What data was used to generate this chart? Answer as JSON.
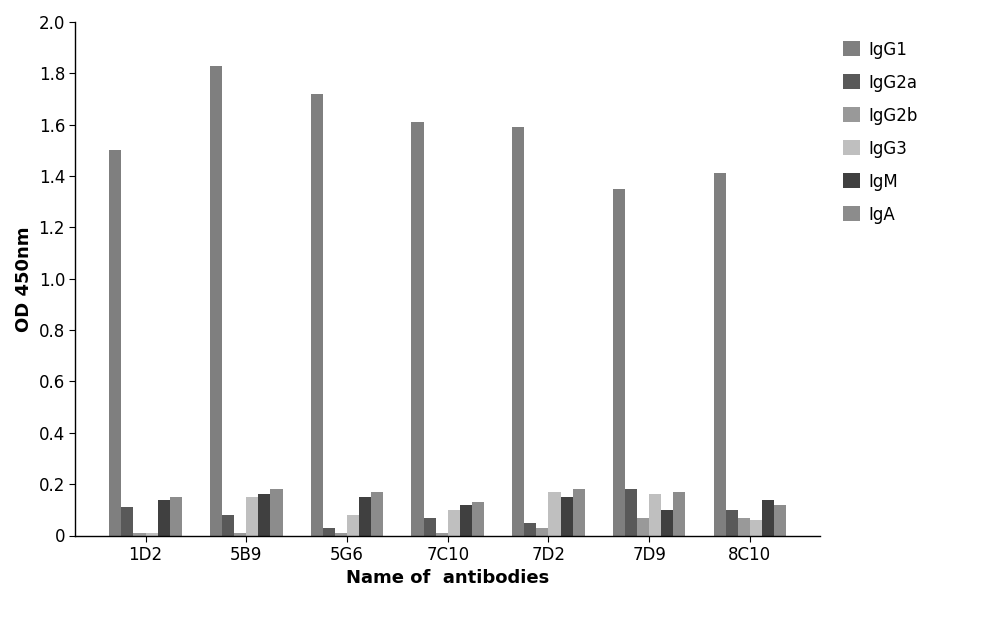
{
  "categories": [
    "1D2",
    "5B9",
    "5G6",
    "7C10",
    "7D2",
    "7D9",
    "8C10"
  ],
  "series": {
    "IgG1": [
      1.5,
      1.83,
      1.72,
      1.61,
      1.59,
      1.35,
      1.41
    ],
    "IgG2a": [
      0.11,
      0.08,
      0.03,
      0.07,
      0.05,
      0.18,
      0.1
    ],
    "IgG2b": [
      0.01,
      0.01,
      0.01,
      0.01,
      0.03,
      0.07,
      0.07
    ],
    "IgG3": [
      0.01,
      0.15,
      0.08,
      0.1,
      0.17,
      0.16,
      0.06
    ],
    "IgM": [
      0.14,
      0.16,
      0.15,
      0.12,
      0.15,
      0.1,
      0.14
    ],
    "IgA": [
      0.15,
      0.18,
      0.17,
      0.13,
      0.18,
      0.17,
      0.12
    ]
  },
  "colors": {
    "IgG1": "#7f7f7f",
    "IgG2a": "#595959",
    "IgG2b": "#999999",
    "IgG3": "#bfbfbf",
    "IgM": "#404040",
    "IgA": "#8c8c8c"
  },
  "ylabel": "OD 450nm",
  "xlabel": "Name of  antibodies",
  "ylim": [
    0,
    2.0
  ],
  "yticks": [
    0,
    0.2,
    0.4,
    0.6,
    0.8,
    1.0,
    1.2,
    1.4,
    1.6,
    1.8,
    2.0
  ],
  "legend_order": [
    "IgG1",
    "IgG2a",
    "IgG2b",
    "IgG3",
    "IgM",
    "IgA"
  ],
  "bar_width": 0.12,
  "figsize": [
    10.0,
    6.3
  ],
  "dpi": 100
}
